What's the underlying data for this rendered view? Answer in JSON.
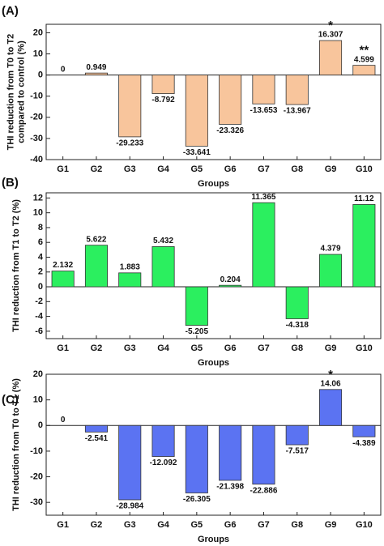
{
  "chart_data": [
    {
      "type": "bar",
      "panel_label": "(A)",
      "ylabel": [
        "THI reduction from T0 to T2",
        "compared to control (%)"
      ],
      "xlabel": "Groups",
      "categories": [
        "G1",
        "G2",
        "G3",
        "G4",
        "G5",
        "G6",
        "G7",
        "G8",
        "G9",
        "G10"
      ],
      "values": [
        0,
        0.949,
        -29.233,
        -8.792,
        -33.641,
        -23.326,
        -13.653,
        -13.967,
        16.307,
        4.599
      ],
      "color": "#f8c59c",
      "ylim": [
        -40,
        24
      ],
      "yticks": [
        -40,
        -30,
        -20,
        -10,
        0,
        10,
        20
      ],
      "annotations": [
        {
          "text": "*",
          "category": "G9"
        },
        {
          "text": "**",
          "category": "G10"
        }
      ]
    },
    {
      "type": "bar",
      "panel_label": "(B)",
      "ylabel": [
        "THI reduction from T1 to T2 (%)"
      ],
      "xlabel": "Groups",
      "categories": [
        "G1",
        "G2",
        "G3",
        "G4",
        "G5",
        "G6",
        "G7",
        "G8",
        "G9",
        "G10"
      ],
      "values": [
        2.132,
        5.622,
        1.883,
        5.432,
        -5.205,
        0.204,
        11.365,
        -4.318,
        4.379,
        11.12
      ],
      "color": "#2bef5f",
      "ylim": [
        -7,
        12.7
      ],
      "yticks": [
        -6,
        -4,
        -2,
        0,
        2,
        4,
        6,
        8,
        10,
        12
      ],
      "annotations": []
    },
    {
      "type": "bar",
      "panel_label": "(C)",
      "ylabel": [
        "THI reduction from T0 to T1 (%)"
      ],
      "xlabel": "Groups",
      "categories": [
        "G1",
        "G2",
        "G3",
        "G4",
        "G5",
        "G6",
        "G7",
        "G8",
        "G9",
        "G10"
      ],
      "values": [
        0,
        -2.541,
        -28.984,
        -12.092,
        -26.305,
        -21.398,
        -22.886,
        -7.517,
        14.06,
        -4.389
      ],
      "color": "#5b73f2",
      "ylim": [
        -35,
        20
      ],
      "yticks": [
        -30,
        -20,
        -10,
        0,
        10,
        20
      ],
      "annotations": [
        {
          "text": "*",
          "category": "G9"
        }
      ]
    }
  ]
}
